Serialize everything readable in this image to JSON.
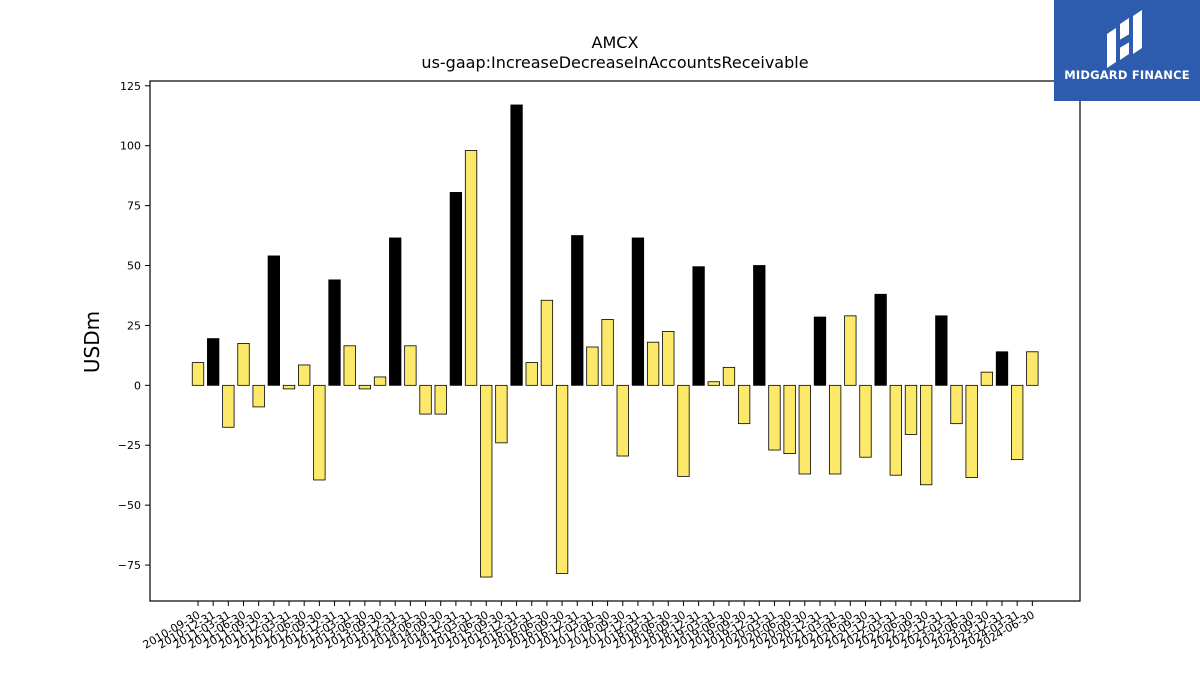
{
  "brand": {
    "name": "MIDGARD FINANCE",
    "color": "#2d5cae"
  },
  "chart_data": {
    "type": "bar",
    "title": "AMCX",
    "subtitle": "us-gaap:IncreaseDecreaseInAccountsReceivable",
    "ylabel": "USDm",
    "xlabel": "",
    "ylim": [
      -90,
      127
    ],
    "yticks": [
      125,
      100,
      75,
      50,
      25,
      0,
      -25,
      -50,
      -75
    ],
    "grid": false,
    "colors": {
      "annual": "#000000",
      "quarterly": "#fce96a"
    },
    "categories": [
      "2010-09-30",
      "2010-12-31",
      "2011-03-31",
      "2011-06-30",
      "2011-09-30",
      "2011-12-31",
      "2012-03-31",
      "2012-06-30",
      "2012-09-30",
      "2012-12-31",
      "2013-03-31",
      "2013-06-30",
      "2013-09-30",
      "2013-12-31",
      "2014-03-31",
      "2014-06-30",
      "2014-09-30",
      "2014-12-31",
      "2015-03-31",
      "2015-06-30",
      "2015-09-30",
      "2015-12-31",
      "2016-03-31",
      "2016-06-30",
      "2016-09-30",
      "2016-12-31",
      "2017-03-31",
      "2017-06-30",
      "2017-09-30",
      "2017-12-31",
      "2018-03-31",
      "2018-06-30",
      "2018-09-30",
      "2018-12-31",
      "2019-03-31",
      "2019-06-30",
      "2019-09-30",
      "2019-12-31",
      "2020-03-31",
      "2020-06-30",
      "2020-09-30",
      "2020-12-31",
      "2021-03-31",
      "2021-06-30",
      "2021-09-30",
      "2021-12-31",
      "2022-03-31",
      "2022-06-30",
      "2022-09-30",
      "2022-12-31",
      "2023-03-31",
      "2023-06-30",
      "2023-09-30",
      "2023-12-31",
      "2024-03-31",
      "2024-06-30"
    ],
    "values": [
      9.5,
      19.5,
      -17.5,
      17.5,
      -9,
      54,
      -1.5,
      8.5,
      -39.5,
      44,
      16.5,
      -1.5,
      3.5,
      61.5,
      16.5,
      -12,
      -12,
      80.5,
      98,
      -80,
      -24,
      117,
      9.5,
      35.5,
      -78.5,
      62.5,
      16,
      27.5,
      -29.5,
      61.5,
      18,
      22.5,
      -38,
      49.5,
      1.5,
      7.5,
      -16,
      50,
      -27,
      -28.5,
      -37,
      28.5,
      -37,
      29,
      -30,
      38,
      -37.5,
      -20.5,
      -41.5,
      29,
      -16,
      -38.5,
      5.5,
      14,
      -31,
      14
    ],
    "annual_flags": [
      0,
      1,
      0,
      0,
      0,
      1,
      0,
      0,
      0,
      1,
      0,
      0,
      0,
      1,
      0,
      0,
      0,
      1,
      0,
      0,
      0,
      1,
      0,
      0,
      0,
      1,
      0,
      0,
      0,
      1,
      0,
      0,
      0,
      1,
      0,
      0,
      0,
      1,
      0,
      0,
      0,
      1,
      0,
      0,
      0,
      1,
      0,
      0,
      0,
      1,
      0,
      0,
      0,
      1,
      0,
      0
    ]
  }
}
